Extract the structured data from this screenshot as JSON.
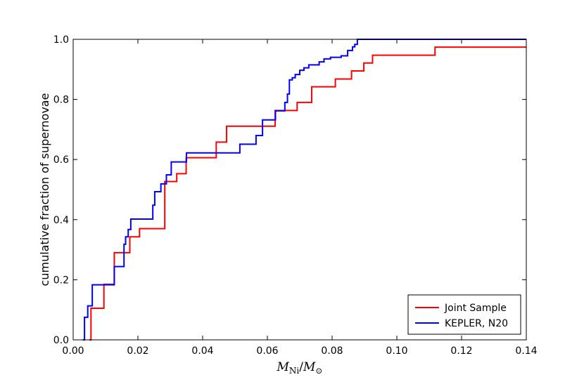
{
  "chart_data": {
    "type": "line",
    "step": true,
    "xlabel": {
      "main": "M",
      "sub_main": "Ni",
      "sep": "/",
      "denom": "M",
      "sub_denom": "⊙"
    },
    "ylabel": "cumulative fraction of supernovae",
    "xlim": [
      0.0,
      0.14
    ],
    "ylim": [
      0.0,
      1.0
    ],
    "xticks": [
      "0.00",
      "0.02",
      "0.04",
      "0.06",
      "0.08",
      "0.10",
      "0.12",
      "0.14"
    ],
    "yticks": [
      "0.0",
      "0.2",
      "0.4",
      "0.6",
      "0.8",
      "1.0"
    ],
    "legend": {
      "placement": "lower-right"
    },
    "series": [
      {
        "name": "Joint Sample",
        "color": "#ff0000",
        "x": [
          0.005,
          0.0055,
          0.0095,
          0.0127,
          0.0165,
          0.0175,
          0.0205,
          0.0283,
          0.032,
          0.0349,
          0.0442,
          0.0474,
          0.0624,
          0.0624,
          0.0692,
          0.0737,
          0.081,
          0.086,
          0.0898,
          0.0925,
          0.1118
        ],
        "y": [
          0.0,
          0.105,
          0.185,
          0.29,
          0.29,
          0.343,
          0.37,
          0.527,
          0.553,
          0.606,
          0.658,
          0.711,
          0.737,
          0.763,
          0.79,
          0.842,
          0.868,
          0.895,
          0.921,
          0.947,
          0.974
        ]
      },
      {
        "name": "KEPLER, N20",
        "color": "#0000ff",
        "x": [
          0.003,
          0.0035,
          0.0045,
          0.0059,
          0.0127,
          0.0157,
          0.0162,
          0.017,
          0.0178,
          0.0246,
          0.0252,
          0.0271,
          0.0288,
          0.0303,
          0.035,
          0.044,
          0.0515,
          0.0537,
          0.0565,
          0.0585,
          0.0594,
          0.0625,
          0.064,
          0.0654,
          0.0662,
          0.0668,
          0.0677,
          0.0686,
          0.07,
          0.0713,
          0.0728,
          0.076,
          0.0775,
          0.0795,
          0.0828,
          0.0848,
          0.0863,
          0.087,
          0.0878,
          0.0888
        ],
        "y": [
          0.0,
          0.075,
          0.113,
          0.183,
          0.244,
          0.318,
          0.343,
          0.367,
          0.402,
          0.448,
          0.493,
          0.519,
          0.549,
          0.592,
          0.622,
          0.622,
          0.651,
          0.651,
          0.68,
          0.732,
          0.732,
          0.762,
          0.762,
          0.79,
          0.818,
          0.865,
          0.872,
          0.883,
          0.897,
          0.905,
          0.915,
          0.925,
          0.935,
          0.94,
          0.945,
          0.963,
          0.975,
          0.983,
          1.0,
          1.0
        ]
      }
    ]
  }
}
